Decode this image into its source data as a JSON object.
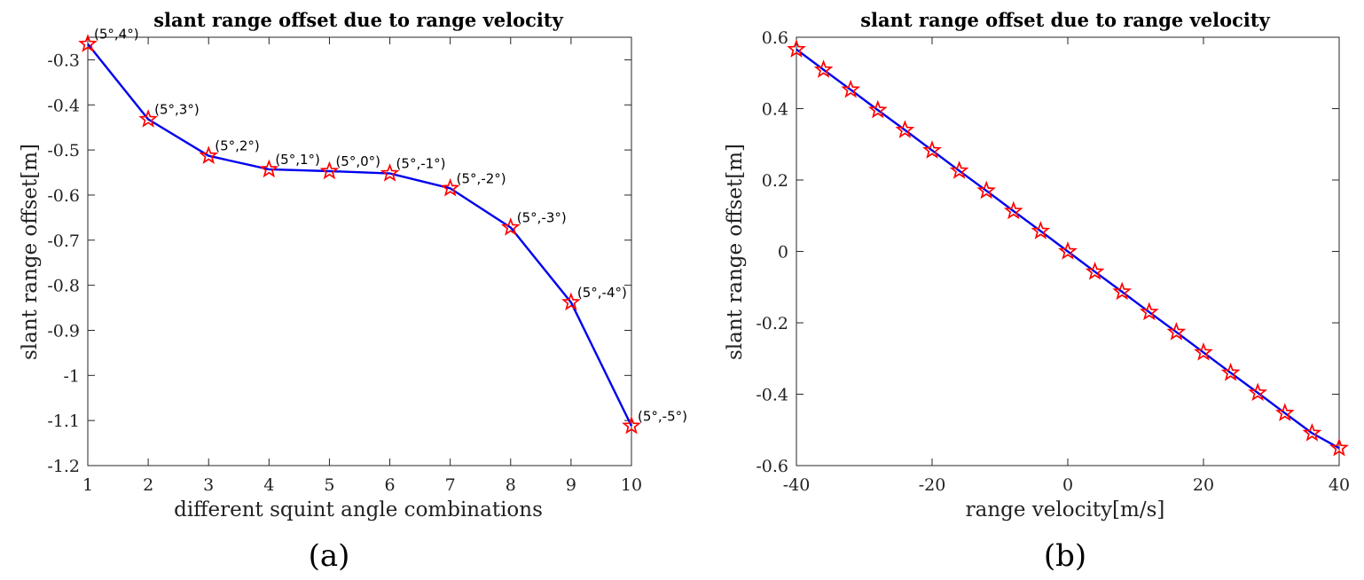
{
  "chart_data": [
    {
      "type": "line",
      "title": "slant range offset due to range velocity",
      "xlabel": "different squint angle combinations",
      "ylabel": "slant range offset[m]",
      "panel_label": "(a)",
      "xlim": [
        1,
        10
      ],
      "ylim": [
        -1.2,
        -0.25
      ],
      "xticks": [
        "1",
        "2",
        "3",
        "4",
        "5",
        "6",
        "7",
        "8",
        "9",
        "10"
      ],
      "yticks": [
        "-0.3",
        "-0.4",
        "-0.5",
        "-0.6",
        "-0.7",
        "-0.8",
        "-0.9",
        "-1",
        "-1.1",
        "-1.2"
      ],
      "grid": false,
      "line_color": "#0000ee",
      "marker_color": "#ff0000",
      "marker": "pentagram",
      "x": [
        1,
        2,
        3,
        4,
        5,
        6,
        7,
        8,
        9,
        10
      ],
      "y": [
        -0.265,
        -0.432,
        -0.513,
        -0.543,
        -0.547,
        -0.552,
        -0.585,
        -0.672,
        -0.838,
        -1.112
      ],
      "annotations": [
        "(5°,4°)",
        "(5°,3°)",
        "(5°,2°)",
        "(5°,1°)",
        "(5°,0°)",
        "(5°,-1°)",
        "(5°,-2°)",
        "(5°,-3°)",
        "(5°,-4°)",
        "(5°,-5°)"
      ]
    },
    {
      "type": "line",
      "title": "slant range offset due to range velocity",
      "xlabel": "range velocity[m/s]",
      "ylabel": "slant range offset[m]",
      "panel_label": "(b)",
      "xlim": [
        -40,
        40
      ],
      "ylim": [
        -0.6,
        0.6
      ],
      "xticks": [
        "-40",
        "-20",
        "0",
        "20",
        "40"
      ],
      "yticks": [
        "0.6",
        "0.4",
        "0.2",
        "0",
        "-0.2",
        "-0.4",
        "-0.6"
      ],
      "grid": false,
      "line_color": "#0000ee",
      "marker_color": "#ff0000",
      "marker": "pentagram",
      "x": [
        -40,
        -36,
        -32,
        -28,
        -24,
        -20,
        -16,
        -12,
        -8,
        -4,
        0,
        4,
        8,
        12,
        16,
        20,
        24,
        28,
        32,
        36,
        40
      ],
      "y": [
        0.566,
        0.509,
        0.453,
        0.396,
        0.34,
        0.283,
        0.226,
        0.17,
        0.113,
        0.057,
        0.0,
        -0.057,
        -0.113,
        -0.17,
        -0.226,
        -0.283,
        -0.34,
        -0.396,
        -0.453,
        -0.509,
        -0.551
      ]
    }
  ]
}
